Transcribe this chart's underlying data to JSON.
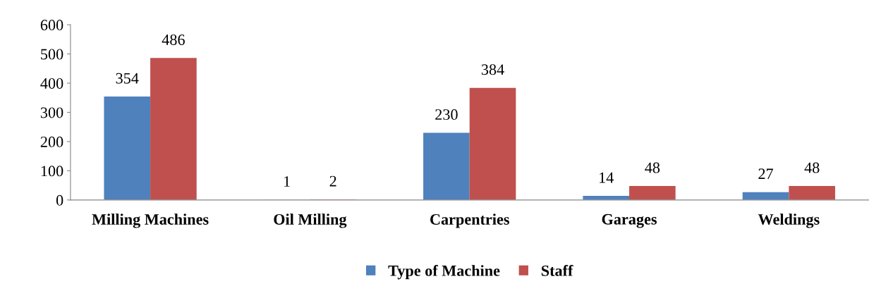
{
  "chart_data": {
    "type": "bar",
    "categories": [
      "Milling Machines",
      "Oil Milling",
      "Carpentries",
      "Garages",
      "Weldings"
    ],
    "series": [
      {
        "name": "Type of Machine",
        "color": "#4f81bd",
        "values": [
          354,
          1,
          230,
          14,
          27
        ]
      },
      {
        "name": "Staff",
        "color": "#c0504d",
        "values": [
          486,
          2,
          384,
          48,
          48
        ]
      }
    ],
    "ylim": [
      0,
      600
    ],
    "yticks": [
      0,
      100,
      200,
      300,
      400,
      500,
      600
    ],
    "grid": false,
    "legend": "bottom",
    "data_labels": true
  }
}
